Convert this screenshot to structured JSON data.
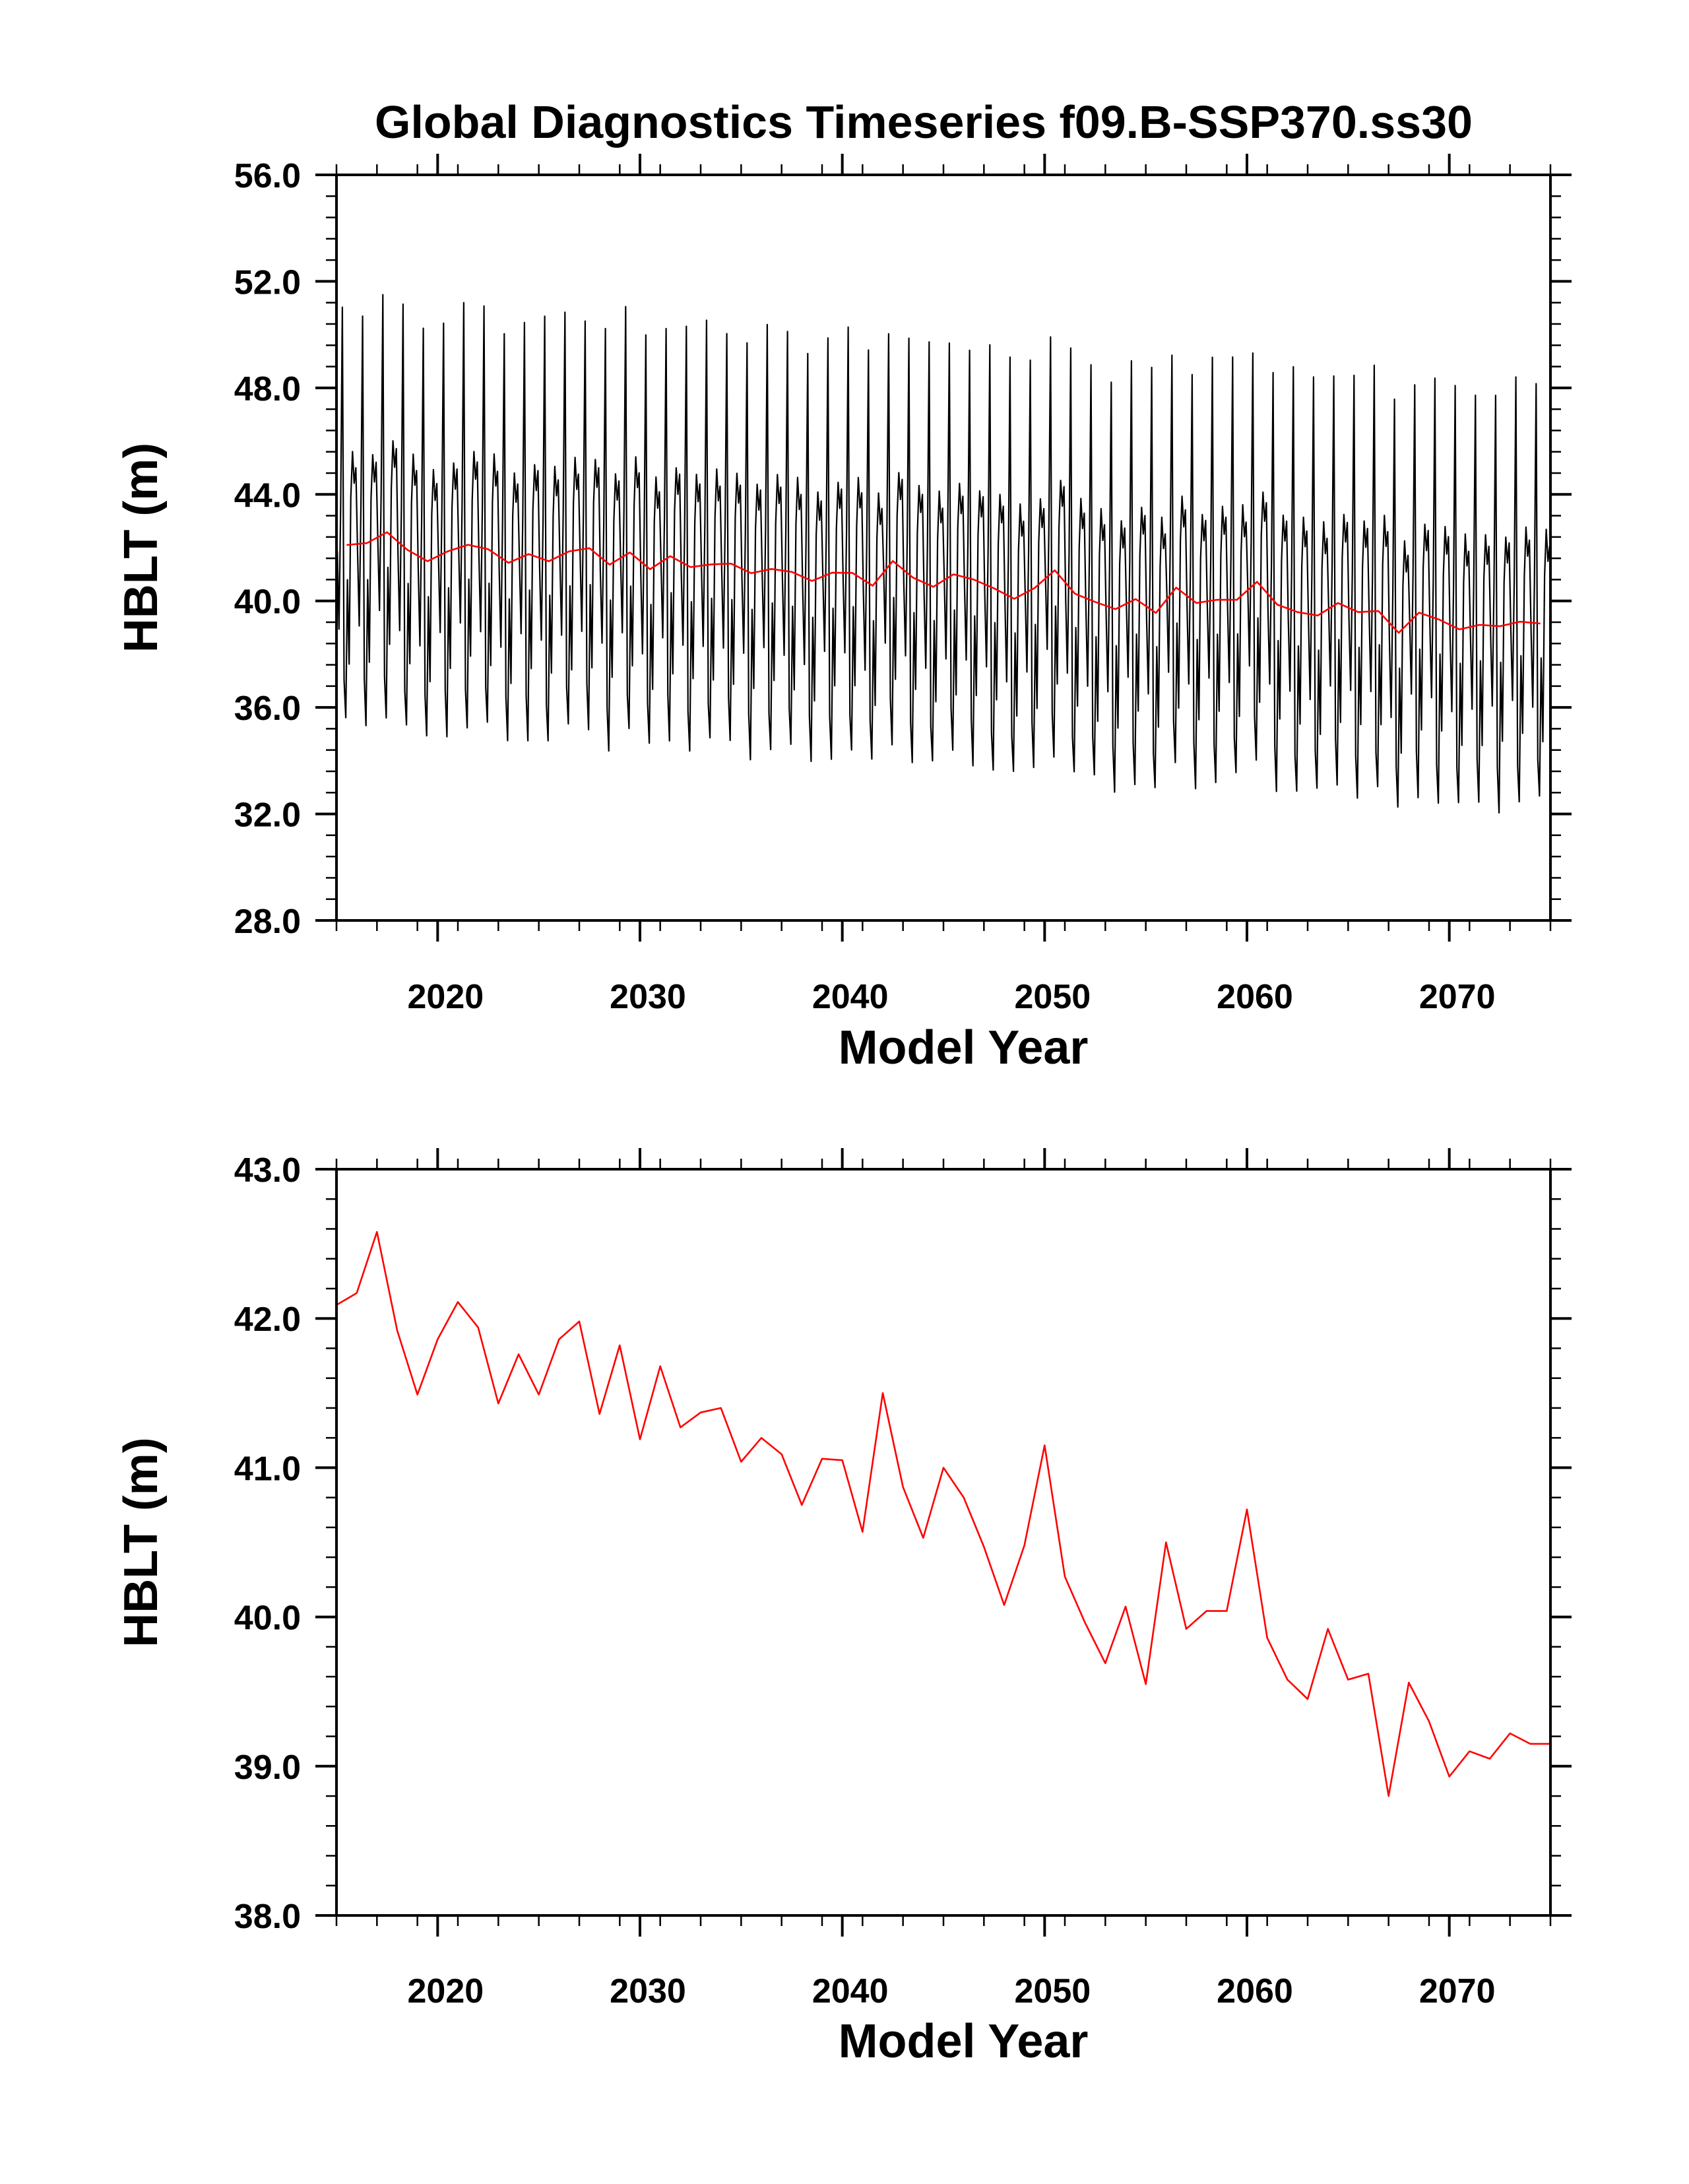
{
  "chart_data": [
    {
      "type": "line",
      "title": "Global Diagnostics Timeseries f09.B-SSP370.ss30",
      "xlabel": "Model Year",
      "ylabel": "HBLT (m)",
      "xlim": [
        2015,
        2075
      ],
      "ylim": [
        28,
        56
      ],
      "xticks": [
        2020,
        2030,
        2040,
        2050,
        2060,
        2070
      ],
      "xtick_labels": [
        "2020",
        "2030",
        "2040",
        "2050",
        "2060",
        "2070"
      ],
      "yticks": [
        28,
        32,
        36,
        40,
        44,
        48,
        52,
        56
      ],
      "ytick_labels": [
        "28.0",
        "32.0",
        "36.0",
        "40.0",
        "44.0",
        "48.0",
        "52.0",
        "56.0"
      ],
      "grid": false,
      "series": [
        {
          "kind": "monthly",
          "color": "#000000",
          "start_year": 2015,
          "monthly_shape": [
            -0.05,
            -0.7,
            0.35,
            2.05,
            -1.2,
            -1.55,
            -0.3,
            -1.0,
            0.4,
            0.8,
            0.55,
            0.7
          ],
          "months_per_year": 12
        },
        {
          "kind": "annual",
          "color": "#ff0000",
          "x": [
            2015.5,
            2016.5,
            2017.5,
            2018.5,
            2019.5,
            2020.5,
            2021.5,
            2022.5,
            2023.5,
            2024.5,
            2025.5,
            2026.5,
            2027.5,
            2028.5,
            2029.5,
            2030.5,
            2031.5,
            2032.5,
            2033.5,
            2034.5,
            2035.5,
            2036.5,
            2037.5,
            2038.5,
            2039.5,
            2040.5,
            2041.5,
            2042.5,
            2043.5,
            2044.5,
            2045.5,
            2046.5,
            2047.5,
            2048.5,
            2049.5,
            2050.5,
            2051.5,
            2052.5,
            2053.5,
            2054.5,
            2055.5,
            2056.5,
            2057.5,
            2058.5,
            2059.5,
            2060.5,
            2061.5,
            2062.5,
            2063.5,
            2064.5,
            2065.5,
            2066.5,
            2067.5,
            2068.5,
            2069.5,
            2070.5,
            2071.5,
            2072.5,
            2073.5,
            2074.5
          ],
          "values": [
            42.1,
            42.17,
            42.58,
            41.92,
            41.49,
            41.86,
            42.11,
            41.94,
            41.43,
            41.76,
            41.49,
            41.86,
            41.98,
            41.36,
            41.82,
            41.19,
            41.68,
            41.27,
            41.37,
            41.4,
            41.04,
            41.2,
            41.09,
            40.75,
            41.06,
            41.05,
            40.57,
            41.5,
            40.87,
            40.53,
            41.0,
            40.8,
            40.47,
            40.08,
            40.48,
            41.15,
            40.27,
            39.96,
            39.69,
            40.07,
            39.55,
            40.5,
            39.92,
            40.04,
            40.04,
            40.72,
            39.86,
            39.58,
            39.45,
            39.92,
            39.58,
            39.62,
            38.8,
            39.56,
            39.3,
            38.93,
            39.1,
            39.05,
            39.22,
            39.15
          ]
        }
      ]
    },
    {
      "type": "line",
      "title": "",
      "xlabel": "Model Year",
      "ylabel": "HBLT (m)",
      "xlim": [
        2015,
        2075
      ],
      "ylim": [
        38,
        43
      ],
      "xticks": [
        2020,
        2030,
        2040,
        2050,
        2060,
        2070
      ],
      "xtick_labels": [
        "2020",
        "2030",
        "2040",
        "2050",
        "2060",
        "2070"
      ],
      "yticks": [
        38,
        39,
        40,
        41,
        42,
        43
      ],
      "ytick_labels": [
        "38.0",
        "39.0",
        "40.0",
        "41.0",
        "42.0",
        "43.0"
      ],
      "grid": false,
      "series": [
        {
          "kind": "annual",
          "color": "#ff0000",
          "x": [
            2015,
            2016,
            2017,
            2018,
            2019,
            2020,
            2021,
            2022,
            2023,
            2024,
            2025,
            2026,
            2027,
            2028,
            2029,
            2030,
            2031,
            2032,
            2033,
            2034,
            2035,
            2036,
            2037,
            2038,
            2039,
            2040,
            2041,
            2042,
            2043,
            2044,
            2045,
            2046,
            2047,
            2048,
            2049,
            2050,
            2051,
            2052,
            2053,
            2054,
            2055,
            2056,
            2057,
            2058,
            2059,
            2060,
            2061,
            2062,
            2063,
            2064,
            2065,
            2066,
            2067,
            2068,
            2069,
            2070,
            2071,
            2072,
            2073,
            2074,
            2075
          ],
          "values": [
            42.09,
            42.17,
            42.58,
            41.92,
            41.49,
            41.86,
            42.11,
            41.94,
            41.43,
            41.76,
            41.49,
            41.86,
            41.98,
            41.36,
            41.82,
            41.19,
            41.68,
            41.27,
            41.37,
            41.4,
            41.04,
            41.2,
            41.09,
            40.75,
            41.06,
            41.05,
            40.57,
            41.5,
            40.87,
            40.53,
            41.0,
            40.8,
            40.47,
            40.08,
            40.48,
            41.15,
            40.27,
            39.96,
            39.69,
            40.07,
            39.55,
            40.5,
            39.92,
            40.04,
            40.04,
            40.72,
            39.86,
            39.58,
            39.45,
            39.92,
            39.58,
            39.62,
            38.8,
            39.56,
            39.3,
            38.93,
            39.1,
            39.05,
            39.22,
            39.15,
            39.15
          ]
        }
      ]
    }
  ]
}
